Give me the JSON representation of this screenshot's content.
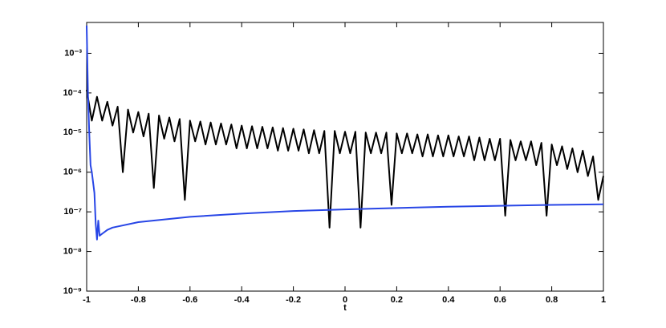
{
  "chart_data": {
    "type": "line",
    "xlabel": "t",
    "yscale": "log",
    "xlim": [
      -1,
      1
    ],
    "xticks": [
      -1,
      -0.8,
      -0.6,
      -0.4,
      -0.2,
      0,
      0.2,
      0.4,
      0.6,
      0.8,
      1
    ],
    "ylim": [
      1e-09,
      0.006
    ],
    "yticks": [
      {
        "value": 1e-09,
        "label": "10⁻⁹"
      },
      {
        "value": 1e-08,
        "label": "10⁻⁸"
      },
      {
        "value": 1e-07,
        "label": "10⁻⁷"
      },
      {
        "value": 1e-06,
        "label": "10⁻⁶"
      },
      {
        "value": 1e-05,
        "label": "10⁻⁵"
      },
      {
        "value": 0.0001,
        "label": "10⁻⁴"
      },
      {
        "value": 0.001,
        "label": "10⁻³"
      }
    ],
    "series": [
      {
        "color": "#000000",
        "x": [
          -1,
          -0.98,
          -0.96,
          -0.94,
          -0.92,
          -0.9,
          -0.88,
          -0.86,
          -0.84,
          -0.82,
          -0.8,
          -0.78,
          -0.76,
          -0.74,
          -0.72,
          -0.7,
          -0.68,
          -0.66,
          -0.64,
          -0.62,
          -0.6,
          -0.58,
          -0.56,
          -0.54,
          -0.52,
          -0.5,
          -0.48,
          -0.46,
          -0.44,
          -0.42,
          -0.4,
          -0.38,
          -0.36,
          -0.34,
          -0.32,
          -0.3,
          -0.28,
          -0.26,
          -0.24,
          -0.22,
          -0.2,
          -0.18,
          -0.16,
          -0.14,
          -0.12,
          -0.1,
          -0.08,
          -0.06,
          -0.04,
          -0.02,
          0,
          0.02,
          0.04,
          0.06,
          0.08,
          0.1,
          0.12,
          0.14,
          0.16,
          0.18,
          0.2,
          0.22,
          0.24,
          0.26,
          0.28,
          0.3,
          0.32,
          0.34,
          0.36,
          0.38,
          0.4,
          0.42,
          0.44,
          0.46,
          0.48,
          0.5,
          0.52,
          0.54,
          0.56,
          0.58,
          0.6,
          0.62,
          0.64,
          0.66,
          0.68,
          0.7,
          0.72,
          0.74,
          0.76,
          0.78,
          0.8,
          0.82,
          0.84,
          0.86,
          0.88,
          0.9,
          0.92,
          0.94,
          0.96,
          0.98,
          1
        ],
        "values": [
          0.00012,
          2e-05,
          8e-05,
          2e-05,
          6e-05,
          1.5e-05,
          4.5e-05,
          1e-06,
          3.8e-05,
          1e-05,
          3.3e-05,
          8e-06,
          3e-05,
          4e-07,
          2.7e-05,
          7e-06,
          2.4e-05,
          6e-06,
          2.2e-05,
          2e-07,
          2e-05,
          6e-06,
          1.9e-05,
          5e-06,
          1.8e-05,
          5e-06,
          1.7e-05,
          5e-06,
          1.6e-05,
          4e-06,
          1.5e-05,
          4e-06,
          1.45e-05,
          4e-06,
          1.4e-05,
          4e-06,
          1.35e-05,
          3.5e-06,
          1.3e-05,
          3.5e-06,
          1.25e-05,
          3.5e-06,
          1.2e-05,
          3e-06,
          1.15e-05,
          3e-06,
          1.1e-05,
          4e-08,
          1.1e-05,
          3e-06,
          1.05e-05,
          3e-06,
          1.05e-05,
          4e-08,
          1e-05,
          3e-06,
          1e-05,
          3e-06,
          1e-05,
          1.5e-07,
          9.5e-06,
          3e-06,
          9.5e-06,
          3e-06,
          9e-06,
          2.5e-06,
          9e-06,
          2.5e-06,
          8.5e-06,
          2.5e-06,
          8.5e-06,
          2.5e-06,
          8e-06,
          2.5e-06,
          8e-06,
          2e-06,
          7.5e-06,
          2e-06,
          7e-06,
          2e-06,
          7e-06,
          8e-08,
          6.5e-06,
          2e-06,
          6e-06,
          2e-06,
          6e-06,
          1.5e-06,
          5.5e-06,
          8e-08,
          5e-06,
          1.5e-06,
          4.5e-06,
          1.2e-06,
          4e-06,
          1e-06,
          3.5e-06,
          8e-07,
          2.5e-06,
          2e-07,
          8e-07
        ]
      },
      {
        "color": "#2846e6",
        "x": [
          -1,
          -0.995,
          -0.99,
          -0.985,
          -0.98,
          -0.97,
          -0.965,
          -0.96,
          -0.955,
          -0.95,
          -0.94,
          -0.92,
          -0.9,
          -0.8,
          -0.6,
          -0.4,
          -0.2,
          0,
          0.2,
          0.4,
          0.6,
          0.8,
          1
        ],
        "values": [
          0.005,
          0.0001,
          1e-05,
          1.5e-06,
          1e-06,
          3e-07,
          5e-08,
          2e-08,
          6e-08,
          2.5e-08,
          2.8e-08,
          3.5e-08,
          4e-08,
          5.5e-08,
          7.5e-08,
          9e-08,
          1.05e-07,
          1.15e-07,
          1.25e-07,
          1.35e-07,
          1.42e-07,
          1.5e-07,
          1.55e-07
        ]
      }
    ]
  }
}
